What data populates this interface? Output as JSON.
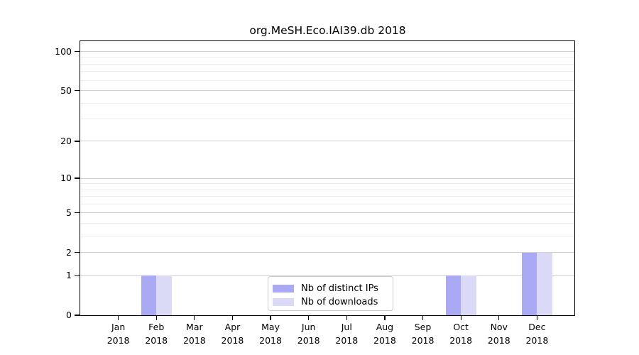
{
  "title": "org.MeSH.Eco.IAI39.db 2018",
  "chart_data": {
    "type": "bar",
    "title": "org.MeSH.Eco.IAI39.db 2018",
    "categories": [
      [
        "Jan",
        "2018"
      ],
      [
        "Feb",
        "2018"
      ],
      [
        "Mar",
        "2018"
      ],
      [
        "Apr",
        "2018"
      ],
      [
        "May",
        "2018"
      ],
      [
        "Jun",
        "2018"
      ],
      [
        "Jul",
        "2018"
      ],
      [
        "Aug",
        "2018"
      ],
      [
        "Sep",
        "2018"
      ],
      [
        "Oct",
        "2018"
      ],
      [
        "Nov",
        "2018"
      ],
      [
        "Dec",
        "2018"
      ]
    ],
    "series": [
      {
        "name": "Nb of distinct IPs",
        "color": "#a9a9f4",
        "values": [
          0,
          1,
          0,
          0,
          0,
          0,
          0,
          0,
          0,
          1,
          0,
          2
        ]
      },
      {
        "name": "Nb of downloads",
        "color": "#dadaf6",
        "values": [
          0,
          1,
          0,
          0,
          0,
          0,
          0,
          0,
          0,
          1,
          0,
          2
        ]
      }
    ],
    "xlabel": "",
    "ylabel": "",
    "yscale": "log1p",
    "ylim": [
      0,
      120
    ],
    "yticks": [
      0,
      1,
      2,
      5,
      10,
      20,
      50,
      100
    ],
    "minor_gridlines": [
      3,
      4,
      6,
      7,
      8,
      9,
      30,
      40,
      60,
      70,
      80,
      90
    ],
    "grid": true,
    "legend_position": "lower center"
  },
  "colors": {
    "background": "#ffffff",
    "major_grid": "#cfcfcf",
    "minor_grid": "#ededed",
    "spine": "#000000",
    "text": "#000000",
    "legend_border": "#cccccc"
  }
}
